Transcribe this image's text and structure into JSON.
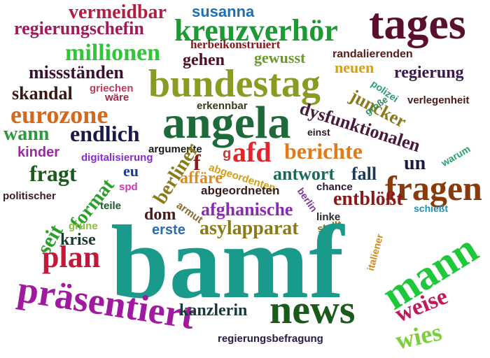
{
  "words": [
    {
      "text": "vermeidbar",
      "color": "#b11f43"
    },
    {
      "text": "susanna",
      "color": "#1b6fb5"
    },
    {
      "text": "tages",
      "color": "#5b0f2f"
    },
    {
      "text": "regierungschefin",
      "color": "#a01a5a"
    },
    {
      "text": "kreuzverhör",
      "color": "#1e9a35"
    },
    {
      "text": "herbeikonstruiert",
      "color": "#8a1818"
    },
    {
      "text": "millionen",
      "color": "#33c43a"
    },
    {
      "text": "gehen",
      "color": "#4a1028"
    },
    {
      "text": "gewusst",
      "color": "#6b9a2a"
    },
    {
      "text": "randalierenden",
      "color": "#5a1a1a"
    },
    {
      "text": "neuen",
      "color": "#d4a01c"
    },
    {
      "text": "missständen",
      "color": "#3b1030"
    },
    {
      "text": "regierung",
      "color": "#3a1a4a"
    },
    {
      "text": "bundestag",
      "color": "#8a9a22"
    },
    {
      "text": "polizei",
      "color": "#2a9a7a"
    },
    {
      "text": "skandal",
      "color": "#3a1a10"
    },
    {
      "text": "griechen",
      "color": "#c03a5a"
    },
    {
      "text": "wäre",
      "color": "#a02a4a"
    },
    {
      "text": "juncker",
      "color": "#8a7a1a"
    },
    {
      "text": "verlegenheit",
      "color": "#4a1a1a"
    },
    {
      "text": "eurozone",
      "color": "#d2691e"
    },
    {
      "text": "erkennbar",
      "color": "#3a3a1a"
    },
    {
      "text": "dysfunktionalen",
      "color": "#4a1a3a"
    },
    {
      "text": "große",
      "color": "#2a8a5a"
    },
    {
      "text": "angela",
      "color": "#1e6a3a"
    },
    {
      "text": "wann",
      "color": "#2a9a3a"
    },
    {
      "text": "endlich",
      "color": "#1a1a4a"
    },
    {
      "text": "einst",
      "color": "#2a1a2a"
    },
    {
      "text": "kinder",
      "color": "#9a2aa0"
    },
    {
      "text": "argumente",
      "color": "#1a1a1a"
    },
    {
      "text": "digitalisierung",
      "color": "#8a2ad0"
    },
    {
      "text": "g",
      "color": "#c03a3a"
    },
    {
      "text": "afd",
      "color": "#e0262a"
    },
    {
      "text": "berichte",
      "color": "#e07a1a"
    },
    {
      "text": "warum",
      "color": "#2aa06a"
    },
    {
      "text": "fragt",
      "color": "#1a5a1a"
    },
    {
      "text": "eu",
      "color": "#1a3aa0"
    },
    {
      "text": "f",
      "color": "#8a1a1a"
    },
    {
      "text": "abgeordenten",
      "color": "#d0a01a"
    },
    {
      "text": "antwort",
      "color": "#1a6a5a"
    },
    {
      "text": "fall",
      "color": "#1a3a5a"
    },
    {
      "text": "un",
      "color": "#1a1a4a"
    },
    {
      "text": "fragen",
      "color": "#8a3a0a"
    },
    {
      "text": "spd",
      "color": "#d03ab0"
    },
    {
      "text": "berliner",
      "color": "#8a7a1a"
    },
    {
      "text": "affäre",
      "color": "#e08a1a"
    },
    {
      "text": "abgeordneten",
      "color": "#3a1a1a"
    },
    {
      "text": "politischer",
      "color": "#3a1a2a"
    },
    {
      "text": "format",
      "color": "#2aa02a"
    },
    {
      "text": "chance",
      "color": "#2a1a3a"
    },
    {
      "text": "berlin",
      "color": "#7a3aa0"
    },
    {
      "text": "entblößt",
      "color": "#8a1a1a"
    },
    {
      "text": "teile",
      "color": "#1a5a2a"
    },
    {
      "text": "armut",
      "color": "#8a6a2a"
    },
    {
      "text": "afghanische",
      "color": "#8a2ab0"
    },
    {
      "text": "seit",
      "color": "#2aa02a"
    },
    {
      "text": "dom",
      "color": "#4a1a1a"
    },
    {
      "text": "schießt",
      "color": "#2a8ab0"
    },
    {
      "text": "linke",
      "color": "#2a2a2a"
    },
    {
      "text": "stellt",
      "color": "#8a6a1a"
    },
    {
      "text": "erste",
      "color": "#2a6ab0"
    },
    {
      "text": "asylapparat",
      "color": "#8a7a1a"
    },
    {
      "text": "grüne",
      "color": "#8ac03a"
    },
    {
      "text": "krise",
      "color": "#1a3a2a"
    },
    {
      "text": "italiener",
      "color": "#d08a1a"
    },
    {
      "text": "bamf",
      "color": "#1a9a8a"
    },
    {
      "text": "mann",
      "color": "#1ec83a"
    },
    {
      "text": "plan",
      "color": "#c01a3a"
    },
    {
      "text": "präsentiert",
      "color": "#a01aa0"
    },
    {
      "text": "weise",
      "color": "#c01a5a"
    },
    {
      "text": "news",
      "color": "#1a5a1a"
    },
    {
      "text": "kanzlerin",
      "color": "#1a3a3a"
    },
    {
      "text": "wies",
      "color": "#7ad03a"
    },
    {
      "text": "regierungsbefragung",
      "color": "#2a1a4a"
    }
  ]
}
